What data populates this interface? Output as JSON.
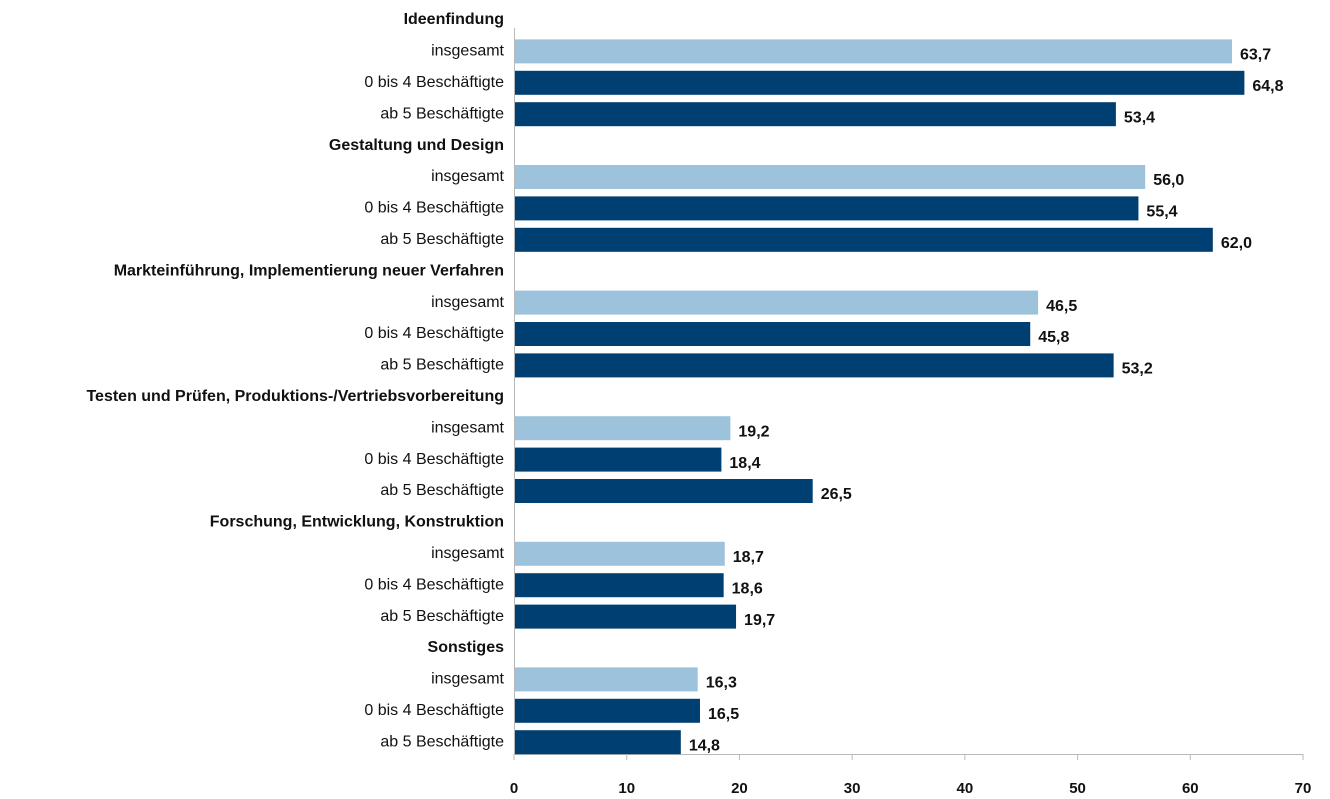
{
  "chart_data": {
    "type": "bar",
    "orientation": "horizontal",
    "xlim": [
      0,
      70
    ],
    "x_ticks": [
      "0",
      "10",
      "20",
      "30",
      "40",
      "50",
      "60",
      "70"
    ],
    "grid": false,
    "series_colors": {
      "insgesamt": "#9dc3dc",
      "0 bis 4 Beschäftigte": "#003f72",
      "ab 5 Beschäftigte": "#003f72"
    },
    "groups": [
      {
        "label": "Ideenfindung",
        "bars": [
          {
            "label": "insgesamt",
            "value": 63.7,
            "value_text": "63,7"
          },
          {
            "label": "0 bis 4 Beschäftigte",
            "value": 64.8,
            "value_text": "64,8"
          },
          {
            "label": "ab 5 Beschäftigte",
            "value": 53.4,
            "value_text": "53,4"
          }
        ]
      },
      {
        "label": "Gestaltung und Design",
        "bars": [
          {
            "label": "insgesamt",
            "value": 56.0,
            "value_text": "56,0"
          },
          {
            "label": "0 bis 4 Beschäftigte",
            "value": 55.4,
            "value_text": "55,4"
          },
          {
            "label": "ab 5 Beschäftigte",
            "value": 62.0,
            "value_text": "62,0"
          }
        ]
      },
      {
        "label": "Markteinführung, Implementierung neuer Verfahren",
        "bars": [
          {
            "label": "insgesamt",
            "value": 46.5,
            "value_text": "46,5"
          },
          {
            "label": "0 bis 4 Beschäftigte",
            "value": 45.8,
            "value_text": "45,8"
          },
          {
            "label": "ab 5 Beschäftigte",
            "value": 53.2,
            "value_text": "53,2"
          }
        ]
      },
      {
        "label": "Testen und Prüfen, Produktions-/Vertriebsvorbereitung",
        "bars": [
          {
            "label": "insgesamt",
            "value": 19.2,
            "value_text": "19,2"
          },
          {
            "label": "0 bis 4 Beschäftigte",
            "value": 18.4,
            "value_text": "18,4"
          },
          {
            "label": "ab 5 Beschäftigte",
            "value": 26.5,
            "value_text": "26,5"
          }
        ]
      },
      {
        "label": "Forschung, Entwicklung, Konstruktion",
        "bars": [
          {
            "label": "insgesamt",
            "value": 18.7,
            "value_text": "18,7"
          },
          {
            "label": "0 bis 4 Beschäftigte",
            "value": 18.6,
            "value_text": "18,6"
          },
          {
            "label": "ab 5 Beschäftigte",
            "value": 19.7,
            "value_text": "19,7"
          }
        ]
      },
      {
        "label": "Sonstiges",
        "bars": [
          {
            "label": "insgesamt",
            "value": 16.3,
            "value_text": "16,3"
          },
          {
            "label": "0 bis 4 Beschäftigte",
            "value": 16.5,
            "value_text": "16,5"
          },
          {
            "label": "ab 5 Beschäftigte",
            "value": 14.8,
            "value_text": "14,8"
          }
        ]
      }
    ]
  }
}
